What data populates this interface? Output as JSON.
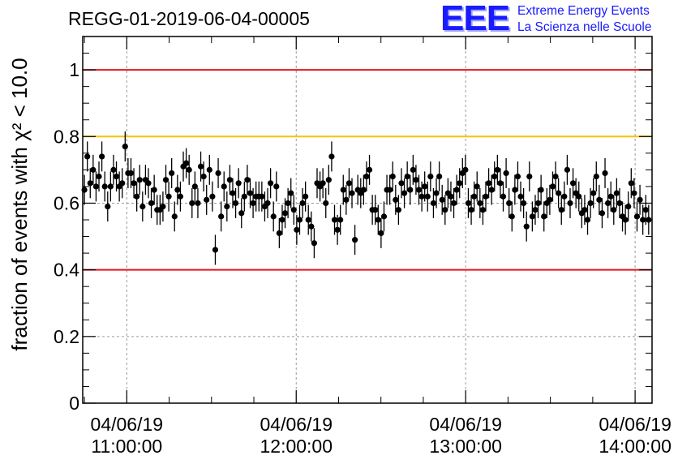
{
  "page_title": "REGG-01-2019-06-04-00005",
  "logo": {
    "mark": "EEE",
    "line1": "Extreme Energy Events",
    "line2": "La Scienza nelle Scuole",
    "color": "#1a1aff"
  },
  "chart_data": {
    "type": "scatter",
    "title": "REGG-01-2019-06-04-00005",
    "ylabel": "fraction of events with χ² < 10.0",
    "xlabel": "",
    "ylim": [
      0,
      1.1
    ],
    "xlim_hours": [
      10.74,
      14.1
    ],
    "grid": true,
    "x_ticks": [
      {
        "date": "04/06/19",
        "time": "11:00:00",
        "hour": 11
      },
      {
        "date": "04/06/19",
        "time": "12:00:00",
        "hour": 12
      },
      {
        "date": "04/06/19",
        "time": "13:00:00",
        "hour": 13
      },
      {
        "date": "04/06/19",
        "time": "14:00:00",
        "hour": 14
      }
    ],
    "y_ticks": [
      "0",
      "0.2",
      "0.4",
      "0.6",
      "0.8",
      "1"
    ],
    "y_tick_values": [
      0,
      0.2,
      0.4,
      0.6,
      0.8,
      1
    ],
    "reference_lines": [
      {
        "y": 1.0,
        "color": "#e8141c"
      },
      {
        "y": 0.8,
        "color": "#f5c400"
      },
      {
        "y": 0.4,
        "color": "#e8141c"
      }
    ],
    "series": [
      {
        "values": [
          0.64,
          0.74,
          0.66,
          0.7,
          0.65,
          0.68,
          0.74,
          0.65,
          0.59,
          0.65,
          0.7,
          0.68,
          0.65,
          0.66,
          0.77,
          0.69,
          0.69,
          0.66,
          0.62,
          0.67,
          0.59,
          0.67,
          0.66,
          0.6,
          0.64,
          0.58,
          0.58,
          0.59,
          0.67,
          0.62,
          0.69,
          0.56,
          0.64,
          0.62,
          0.71,
          0.72,
          0.7,
          0.6,
          0.65,
          0.6,
          0.71,
          0.68,
          0.61,
          0.7,
          0.62,
          0.46,
          0.69,
          0.56,
          0.65,
          0.59,
          0.67,
          0.63,
          0.6,
          0.66,
          0.57,
          0.62,
          0.67,
          0.63,
          0.6,
          0.62,
          0.62,
          0.62,
          0.59,
          0.6,
          0.66,
          0.56,
          0.65,
          0.51,
          0.55,
          0.57,
          0.6,
          0.63,
          0.58,
          0.52,
          0.55,
          0.6,
          0.62,
          0.55,
          0.53,
          0.48,
          0.66,
          0.65,
          0.66,
          0.6,
          0.67,
          0.74,
          0.55,
          0.52,
          0.55,
          0.64,
          0.61,
          0.66,
          0.63,
          0.49,
          0.64,
          0.63,
          0.64,
          0.68,
          0.7,
          0.58,
          0.58,
          0.55,
          0.51,
          0.56,
          0.64,
          0.64,
          0.68,
          0.61,
          0.58,
          0.66,
          0.63,
          0.68,
          0.64,
          0.7,
          0.67,
          0.64,
          0.62,
          0.65,
          0.62,
          0.68,
          0.6,
          0.63,
          0.68,
          0.61,
          0.58,
          0.63,
          0.62,
          0.6,
          0.64,
          0.66,
          0.69,
          0.7,
          0.6,
          0.58,
          0.62,
          0.65,
          0.6,
          0.58,
          0.62,
          0.66,
          0.64,
          0.68,
          0.7,
          0.66,
          0.62,
          0.69,
          0.6,
          0.56,
          0.64,
          0.68,
          0.62,
          0.6,
          0.53,
          0.68,
          0.56,
          0.58,
          0.6,
          0.64,
          0.56,
          0.6,
          0.61,
          0.65,
          0.68,
          0.63,
          0.58,
          0.62,
          0.7,
          0.6,
          0.66,
          0.63,
          0.62,
          0.57,
          0.58,
          0.55,
          0.6,
          0.63,
          0.68,
          0.61,
          0.57,
          0.69,
          0.6,
          0.62,
          0.58,
          0.63,
          0.6,
          0.56,
          0.55,
          0.59,
          0.66,
          0.63,
          0.56,
          0.61,
          0.55,
          0.58,
          0.55
        ],
        "error": 0.045
      }
    ]
  }
}
